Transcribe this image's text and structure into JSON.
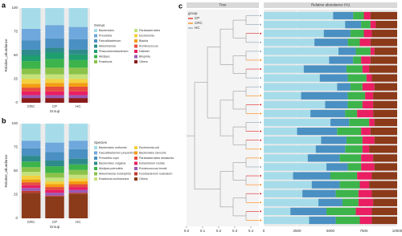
{
  "chart_data": [
    {
      "type": "stacked_bar",
      "panel_label": "a",
      "x_label": "Group",
      "y_label": "Relative_abundance",
      "legend_title": "Genus",
      "categories": [
        "CRC",
        "CP",
        "HC"
      ],
      "ylim": [
        0,
        100
      ],
      "yticks": [
        0,
        25,
        50,
        75,
        100
      ],
      "series": [
        {
          "name": "Bacteroides",
          "color": "#a6dce9",
          "values": [
            22,
            18,
            20
          ]
        },
        {
          "name": "Prevotella",
          "color": "#6fa8dc",
          "values": [
            12,
            14,
            13
          ]
        },
        {
          "name": "Faecalibacterium",
          "color": "#4a90c2",
          "values": [
            10,
            10,
            11
          ]
        },
        {
          "name": "Akkermansia",
          "color": "#2e8b8b",
          "values": [
            6,
            5,
            5
          ]
        },
        {
          "name": "Phascolarctobacterium",
          "color": "#1f9e6e",
          "values": [
            6,
            7,
            6
          ]
        },
        {
          "name": "Alistipes",
          "color": "#3cb44b",
          "values": [
            8,
            9,
            8
          ]
        },
        {
          "name": "Roseburia",
          "color": "#8bc34a",
          "values": [
            6,
            7,
            7
          ]
        },
        {
          "name": "Parabacteroides",
          "color": "#c5e17a",
          "values": [
            5,
            5,
            5
          ]
        },
        {
          "name": "Escherichia",
          "color": "#f4d03f",
          "values": [
            5,
            4,
            4
          ]
        },
        {
          "name": "Blautia",
          "color": "#f39c12",
          "values": [
            4,
            4,
            4
          ]
        },
        {
          "name": "Ruminococcus",
          "color": "#e74c3c",
          "values": [
            4,
            5,
            5
          ]
        },
        {
          "name": "Dialister",
          "color": "#e91e63",
          "values": [
            4,
            4,
            4
          ]
        },
        {
          "name": "Bilophila",
          "color": "#9b59b6",
          "values": [
            3,
            3,
            3
          ]
        },
        {
          "name": "Others",
          "color": "#8b1a1a",
          "values": [
            5,
            5,
            5
          ]
        }
      ]
    },
    {
      "type": "stacked_bar",
      "panel_label": "b",
      "x_label": "Group",
      "y_label": "Relative_abundance",
      "legend_title": "Species",
      "categories": [
        "CRC",
        "CP",
        "HC"
      ],
      "ylim": [
        0,
        100
      ],
      "yticks": [
        0,
        25,
        50,
        75,
        100
      ],
      "series": [
        {
          "name": "Bacteroides uniformis",
          "color": "#a6dce9",
          "values": [
            18,
            20,
            18
          ]
        },
        {
          "name": "Faecalibacterium prausnitzii",
          "color": "#6fa8dc",
          "values": [
            8,
            10,
            9
          ]
        },
        {
          "name": "Prevotella copri",
          "color": "#4a90c2",
          "values": [
            8,
            9,
            10
          ]
        },
        {
          "name": "Bacteroides vulgatus",
          "color": "#2e8b8b",
          "values": [
            6,
            6,
            6
          ]
        },
        {
          "name": "Alistipes putredinis",
          "color": "#3cb44b",
          "values": [
            6,
            7,
            6
          ]
        },
        {
          "name": "Akkermansia muciniphila",
          "color": "#8bc34a",
          "values": [
            5,
            5,
            5
          ]
        },
        {
          "name": "Roseburia inulinivorans",
          "color": "#c5e17a",
          "values": [
            4,
            4,
            4
          ]
        },
        {
          "name": "Escherichia coli",
          "color": "#f4d03f",
          "values": [
            4,
            3,
            3
          ]
        },
        {
          "name": "Bacteroides stercoris",
          "color": "#f39c12",
          "values": [
            3,
            3,
            3
          ]
        },
        {
          "name": "Parabacteroides distasonis",
          "color": "#e74c3c",
          "values": [
            3,
            3,
            3
          ]
        },
        {
          "name": "Eubacterium rectale",
          "color": "#e91e63",
          "values": [
            3,
            3,
            3
          ]
        },
        {
          "name": "Ruminococcus bromii",
          "color": "#9b59b6",
          "values": [
            3,
            3,
            3
          ]
        },
        {
          "name": "Fusobacterium nucleatum",
          "color": "#c0392b",
          "values": [
            2,
            1,
            1
          ]
        },
        {
          "name": "Others",
          "color": "#8b3a1a",
          "values": [
            27,
            23,
            26
          ]
        }
      ]
    },
    {
      "type": "stacked_barh",
      "panel_label": "c",
      "tree_title": "Tree",
      "bar_title": "Relative abundance (%)",
      "group_legend": {
        "title": "group",
        "names": [
          "CP",
          "CRC",
          "HC"
        ],
        "colors": [
          "#e41a1c",
          "#ff7f00",
          "#8aa0b0"
        ]
      },
      "groups": [
        "HC",
        "HC",
        "CP",
        "HC",
        "HC",
        "CRC",
        "CP",
        "HC",
        "HC",
        "CRC",
        "CP",
        "CRC",
        "HC",
        "CP",
        "CP",
        "CRC",
        "CRC",
        "HC",
        "CP",
        "CRC",
        "CP",
        "CRC",
        "CP",
        "CRC"
      ],
      "tree_xlim": [
        0,
        0.45
      ],
      "tree_xticks": [
        {
          "value": 0,
          "label": "0.0"
        },
        {
          "value": 0.1,
          "label": "0.1"
        },
        {
          "value": 0.2,
          "label": "0.2"
        },
        {
          "value": 0.3,
          "label": "0.3"
        },
        {
          "value": 0.4,
          "label": "0.4"
        }
      ],
      "xlim": [
        0,
        10000
      ],
      "xticks": [
        0,
        2500,
        5000,
        7500,
        10000
      ],
      "series": [
        {
          "color": "#a6dce9",
          "values": [
            5200,
            6100,
            4500,
            3800,
            5600,
            4900,
            3000,
            4200,
            5500,
            2800,
            4600,
            3500,
            5000,
            2500,
            4300,
            3900,
            3300,
            4700,
            2200,
            3600,
            2900,
            4100,
            2000,
            3400
          ]
        },
        {
          "color": "#4a90c2",
          "values": [
            1500,
            1200,
            2000,
            2500,
            1300,
            1800,
            3200,
            2100,
            1000,
            3500,
            1700,
            2600,
            1400,
            3000,
            1900,
            2200,
            2400,
            1600,
            2800,
            2100,
            2500,
            1800,
            2700,
            2000
          ]
        },
        {
          "color": "#3cb44b",
          "values": [
            800,
            700,
            1000,
            900,
            1100,
            600,
            1200,
            1400,
            900,
            1300,
            1100,
            900,
            1500,
            1800,
            1200,
            1300,
            1600,
            1000,
            2000,
            1500,
            1700,
            1200,
            2200,
            1800
          ]
        },
        {
          "color": "#e91e63",
          "values": [
            500,
            400,
            600,
            800,
            300,
            700,
            500,
            400,
            900,
            600,
            800,
            1200,
            400,
            700,
            900,
            500,
            900,
            1000,
            1100,
            700,
            1000,
            1100,
            1200,
            900
          ]
        },
        {
          "color": "#8b3a1a",
          "values": [
            2000,
            1600,
            1900,
            2000,
            1700,
            2000,
            2100,
            1900,
            1700,
            1800,
            1800,
            1800,
            1700,
            2000,
            1700,
            2100,
            1800,
            1700,
            1900,
            2100,
            1900,
            1800,
            1900,
            1900
          ]
        }
      ]
    }
  ]
}
